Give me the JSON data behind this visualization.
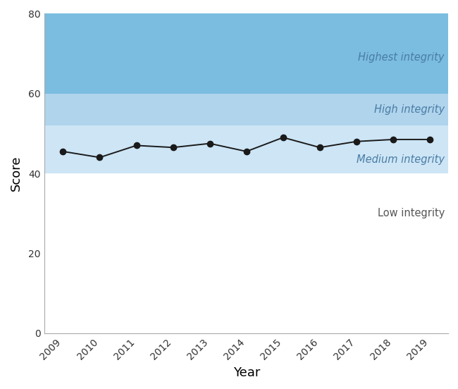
{
  "years": [
    2009,
    2010,
    2011,
    2012,
    2013,
    2014,
    2015,
    2016,
    2017,
    2018,
    2019
  ],
  "scores": [
    45.5,
    44.0,
    47.0,
    46.5,
    47.5,
    45.5,
    49.0,
    46.5,
    48.0,
    48.5,
    48.5
  ],
  "line_color": "#1a1a1a",
  "marker_color": "#1a1a1a",
  "marker_size": 6,
  "line_width": 1.4,
  "zones": [
    {
      "label": "Highest integrity",
      "ymin": 60,
      "ymax": 80,
      "color": "#7bbde0"
    },
    {
      "label": "High integrity",
      "ymin": 52,
      "ymax": 60,
      "color": "#afd4ec"
    },
    {
      "label": "Medium integrity",
      "ymin": 40,
      "ymax": 52,
      "color": "#cde5f5"
    }
  ],
  "zone_labels": [
    {
      "label": "Highest integrity",
      "y": 69,
      "color": "#4a7ca5",
      "italic": true
    },
    {
      "label": "High integrity",
      "y": 56,
      "color": "#4a7ca5",
      "italic": true
    },
    {
      "label": "Medium integrity",
      "y": 43.5,
      "color": "#4a7ca5",
      "italic": true
    },
    {
      "label": "Low integrity",
      "y": 30,
      "color": "#555555",
      "italic": false
    }
  ],
  "xlabel": "Year",
  "ylabel": "Score",
  "xlim": [
    2008.5,
    2019.5
  ],
  "ylim": [
    0,
    80
  ],
  "yticks": [
    0,
    20,
    40,
    60,
    80
  ],
  "xticks": [
    2009,
    2010,
    2011,
    2012,
    2013,
    2014,
    2015,
    2016,
    2017,
    2018,
    2019
  ],
  "bg_color": "#ffffff",
  "fontsize_axis_labels": 13,
  "fontsize_ticks": 10,
  "fontsize_zone_labels": 10.5
}
